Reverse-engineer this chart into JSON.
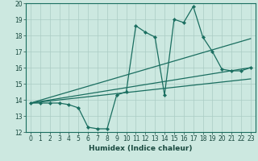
{
  "title": "",
  "xlabel": "Humidex (Indice chaleur)",
  "background_color": "#cce8e0",
  "grid_color": "#aaccc4",
  "line_color": "#1a6e60",
  "xlim": [
    -0.5,
    23.5
  ],
  "ylim": [
    12,
    20
  ],
  "xticks": [
    0,
    1,
    2,
    3,
    4,
    5,
    6,
    7,
    8,
    9,
    10,
    11,
    12,
    13,
    14,
    15,
    16,
    17,
    18,
    19,
    20,
    21,
    22,
    23
  ],
  "yticks": [
    12,
    13,
    14,
    15,
    16,
    17,
    18,
    19,
    20
  ],
  "series_main_x": [
    0,
    1,
    2,
    3,
    4,
    5,
    6,
    7,
    8,
    9,
    10,
    11,
    12,
    13,
    14,
    15,
    16,
    17,
    18,
    19,
    20,
    21,
    22,
    23
  ],
  "series_main_y": [
    13.8,
    13.8,
    13.8,
    13.8,
    13.7,
    13.5,
    12.3,
    12.2,
    12.2,
    14.3,
    14.5,
    18.6,
    18.2,
    17.9,
    14.3,
    19.0,
    18.8,
    19.8,
    17.9,
    17.0,
    15.9,
    15.8,
    15.8,
    16.0
  ],
  "trend1_x": [
    0,
    23
  ],
  "trend1_y": [
    13.8,
    17.8
  ],
  "trend2_x": [
    0,
    23
  ],
  "trend2_y": [
    13.8,
    16.0
  ],
  "trend3_x": [
    0,
    23
  ],
  "trend3_y": [
    13.8,
    15.3
  ],
  "figsize": [
    3.2,
    2.0
  ],
  "dpi": 100,
  "tick_labelsize": 5.5,
  "xlabel_fontsize": 6.5,
  "linewidth": 0.9,
  "markersize": 2.2
}
